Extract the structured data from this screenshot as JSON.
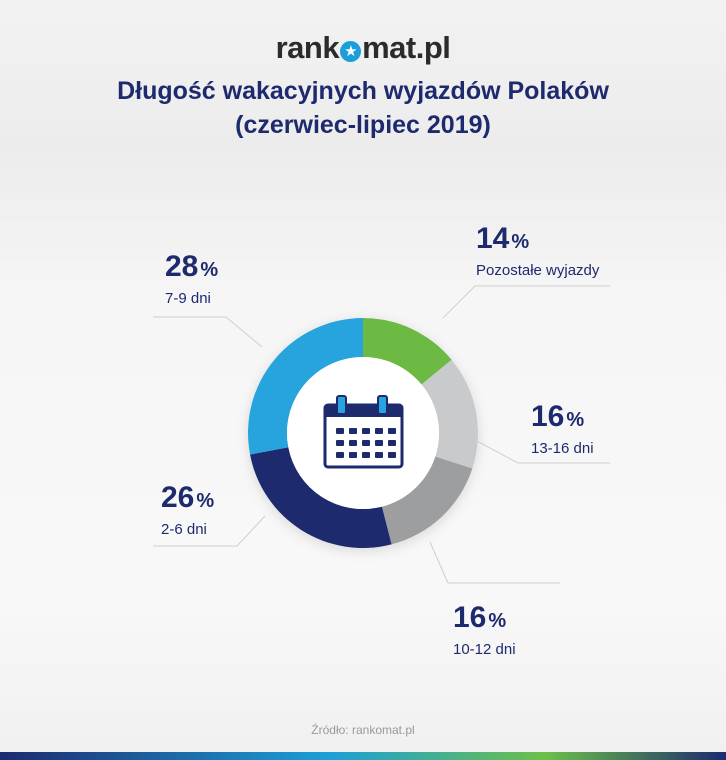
{
  "header": {
    "logo_before": "rank",
    "logo_star": "★",
    "logo_after": "mat.pl",
    "title_line1": "Długość wakacyjnych wyjazdów Polaków",
    "title_line2": "(czerwiec-lipiec 2019)"
  },
  "chart_data": {
    "type": "pie",
    "donut": true,
    "center_icon": "calendar-icon",
    "start_angle_deg": 0,
    "slices": [
      {
        "label": "Pozostałe wyjazdy",
        "value": 14,
        "color": "#6cb944"
      },
      {
        "label": "13-16 dni",
        "value": 16,
        "color": "#c8cacc"
      },
      {
        "label": "10-12 dni",
        "value": 16,
        "color": "#9c9ea0"
      },
      {
        "label": "2-6 dni",
        "value": 26,
        "color": "#1d2a6e"
      },
      {
        "label": "7-9 dni",
        "value": 28,
        "color": "#27a3dd"
      }
    ],
    "percent_suffix": "%"
  },
  "footer": {
    "source": "Źródło: rankomat.pl"
  }
}
